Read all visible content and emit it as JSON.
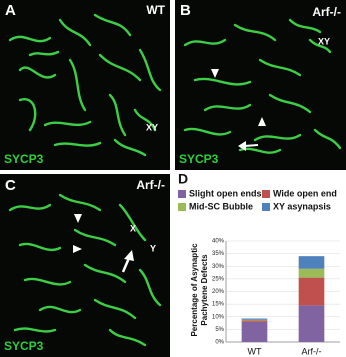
{
  "panels": [
    {
      "label": "A",
      "genotype": "WT",
      "annotations": [
        "XY"
      ],
      "stain": "SYCP3"
    },
    {
      "label": "B",
      "genotype": "Arf-/-",
      "annotations": [
        "XY"
      ],
      "stain": "SYCP3"
    },
    {
      "label": "C",
      "genotype": "Arf-/-",
      "annotations": [
        "X",
        "Y"
      ],
      "stain": "SYCP3"
    }
  ],
  "chart_label": "D",
  "chart_data": {
    "type": "bar",
    "stacked": true,
    "categories": [
      "WT",
      "Arf-/-"
    ],
    "series": [
      {
        "name": "Slight open ends",
        "color": "#8064a2",
        "values": [
          8,
          14.5
        ]
      },
      {
        "name": "Wide open end",
        "color": "#c0504d",
        "values": [
          0.5,
          11
        ]
      },
      {
        "name": "Mid-SC Bubble",
        "color": "#9bbb59",
        "values": [
          0.3,
          3.5
        ]
      },
      {
        "name": "XY asynapsis",
        "color": "#4f81bd",
        "values": [
          0.5,
          5
        ]
      }
    ],
    "y_label": [
      "Percentage of Asynaptic",
      "Pachytene Defects"
    ],
    "ylim": [
      0,
      40
    ],
    "yticks": [
      {
        "value": 0,
        "label": "0%"
      },
      {
        "value": 5,
        "label": "5%"
      },
      {
        "value": 10,
        "label": "10%"
      },
      {
        "value": 15,
        "label": "15%"
      },
      {
        "value": 20,
        "label": "20%"
      },
      {
        "value": 25,
        "label": "25%"
      },
      {
        "value": 30,
        "label": "30%"
      },
      {
        "value": 35,
        "label": "35%"
      },
      {
        "value": 40,
        "label": "40%"
      }
    ],
    "grid": true
  }
}
